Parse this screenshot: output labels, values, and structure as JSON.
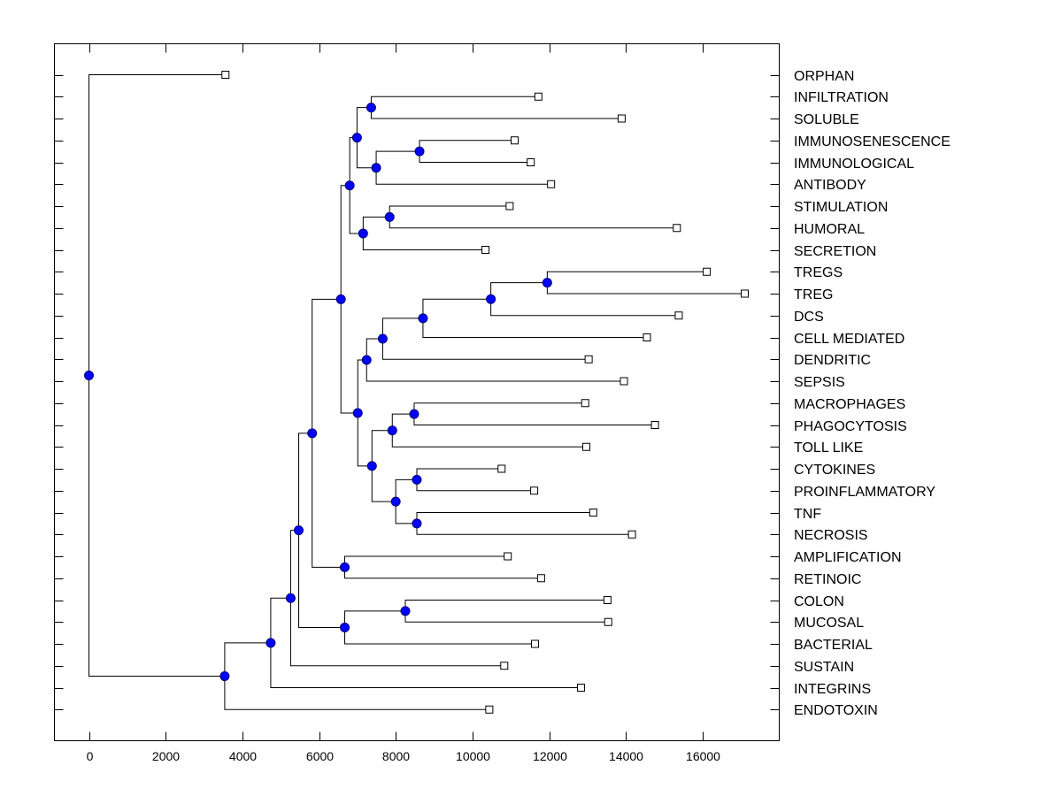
{
  "chart_data": {
    "type": "dendrogram",
    "title": "",
    "xlabel": "",
    "ylabel": "",
    "xlim": [
      -900,
      18000
    ],
    "xticks": [
      0,
      2000,
      4000,
      6000,
      8000,
      10000,
      12000,
      14000,
      16000
    ],
    "xtick_labels": [
      "0",
      "2000",
      "4000",
      "6000",
      "8000",
      "10000",
      "12000",
      "14000",
      "16000"
    ],
    "grid": false,
    "colors": {
      "node_fill": "#0000ff",
      "line": "#000000",
      "leaf_fill": "#ffffff"
    },
    "leaves": [
      {
        "name": "ORPHAN",
        "value": 3560
      },
      {
        "name": "INFILTRATION",
        "value": 11720
      },
      {
        "name": "SOLUBLE",
        "value": 13890
      },
      {
        "name": "IMMUNOSENESCENCE",
        "value": 11100
      },
      {
        "name": "IMMUNOLOGICAL",
        "value": 11520
      },
      {
        "name": "ANTIBODY",
        "value": 12050
      },
      {
        "name": "STIMULATION",
        "value": 10970
      },
      {
        "name": "HUMORAL",
        "value": 15330
      },
      {
        "name": "SECRETION",
        "value": 10340
      },
      {
        "name": "TREGS",
        "value": 16110
      },
      {
        "name": "TREG",
        "value": 17100
      },
      {
        "name": "DCS",
        "value": 15380
      },
      {
        "name": "CELL MEDIATED",
        "value": 14550
      },
      {
        "name": "DENDRITIC",
        "value": 13030
      },
      {
        "name": "SEPSIS",
        "value": 13950
      },
      {
        "name": "MACROPHAGES",
        "value": 12940
      },
      {
        "name": "PHAGOCYTOSIS",
        "value": 14760
      },
      {
        "name": "TOLL LIKE",
        "value": 12970
      },
      {
        "name": "CYTOKINES",
        "value": 10760
      },
      {
        "name": "PROINFLAMMATORY",
        "value": 11610
      },
      {
        "name": "TNF",
        "value": 13150
      },
      {
        "name": "NECROSIS",
        "value": 14160
      },
      {
        "name": "AMPLIFICATION",
        "value": 10920
      },
      {
        "name": "RETINOIC",
        "value": 11790
      },
      {
        "name": "COLON",
        "value": 13520
      },
      {
        "name": "MUCOSAL",
        "value": 13540
      },
      {
        "name": "BACTERIAL",
        "value": 11630
      },
      {
        "name": "SUSTAIN",
        "value": 10830
      },
      {
        "name": "INTEGRINS",
        "value": 12830
      },
      {
        "name": "ENDOTOXIN",
        "value": 10440
      }
    ],
    "tree": {
      "value": 0,
      "children": [
        {
          "leaf": "ORPHAN"
        },
        {
          "value": 3540,
          "children": [
            {
              "value": 4740,
              "children": [
                {
                  "value": 5260,
                  "children": [
                    {
                      "value": 5470,
                      "children": [
                        {
                          "value": 5820,
                          "children": [
                            {
                              "value": 6570,
                              "children": [
                                {
                                  "value": 6800,
                                  "children": [
                                    {
                                      "value": 6990,
                                      "children": [
                                        {
                                          "value": 7360,
                                          "children": [
                                            {
                                              "leaf": "INFILTRATION"
                                            },
                                            {
                                              "leaf": "SOLUBLE"
                                            }
                                          ]
                                        },
                                        {
                                          "value": 7490,
                                          "children": [
                                            {
                                              "value": 8620,
                                              "children": [
                                                {
                                                  "leaf": "IMMUNOSENESCENCE"
                                                },
                                                {
                                                  "leaf": "IMMUNOLOGICAL"
                                                }
                                              ]
                                            },
                                            {
                                              "leaf": "ANTIBODY"
                                            }
                                          ]
                                        }
                                      ]
                                    },
                                    {
                                      "value": 7150,
                                      "children": [
                                        {
                                          "value": 7840,
                                          "children": [
                                            {
                                              "leaf": "STIMULATION"
                                            },
                                            {
                                              "leaf": "HUMORAL"
                                            }
                                          ]
                                        },
                                        {
                                          "leaf": "SECRETION"
                                        }
                                      ]
                                    }
                                  ]
                                },
                                {
                                  "value": 7010,
                                  "children": [
                                    {
                                      "value": 7240,
                                      "children": [
                                        {
                                          "value": 7660,
                                          "children": [
                                            {
                                              "value": 8710,
                                              "children": [
                                                {
                                                  "value": 10480,
                                                  "children": [
                                                    {
                                                      "value": 11950,
                                                      "children": [
                                                        {
                                                          "leaf": "TREGS"
                                                        },
                                                        {
                                                          "leaf": "TREG"
                                                        }
                                                      ]
                                                    },
                                                    {
                                                      "leaf": "DCS"
                                                    }
                                                  ]
                                                },
                                                {
                                                  "leaf": "CELL MEDIATED"
                                                }
                                              ]
                                            },
                                            {
                                              "leaf": "DENDRITIC"
                                            }
                                          ]
                                        },
                                        {
                                          "leaf": "SEPSIS"
                                        }
                                      ]
                                    },
                                    {
                                      "value": 7380,
                                      "children": [
                                        {
                                          "value": 7910,
                                          "children": [
                                            {
                                              "value": 8480,
                                              "children": [
                                                {
                                                  "leaf": "MACROPHAGES"
                                                },
                                                {
                                                  "leaf": "PHAGOCYTOSIS"
                                                }
                                              ]
                                            },
                                            {
                                              "leaf": "TOLL LIKE"
                                            }
                                          ]
                                        },
                                        {
                                          "value": 8000,
                                          "children": [
                                            {
                                              "value": 8550,
                                              "children": [
                                                {
                                                  "leaf": "CYTOKINES"
                                                },
                                                {
                                                  "leaf": "PROINFLAMMATORY"
                                                }
                                              ]
                                            },
                                            {
                                              "value": 8550,
                                              "children": [
                                                {
                                                  "leaf": "TNF"
                                                },
                                                {
                                                  "leaf": "NECROSIS"
                                                }
                                              ]
                                            }
                                          ]
                                        }
                                      ]
                                    }
                                  ]
                                }
                              ]
                            },
                            {
                              "value": 6670,
                              "children": [
                                {
                                  "leaf": "AMPLIFICATION"
                                },
                                {
                                  "leaf": "RETINOIC"
                                }
                              ]
                            }
                          ]
                        },
                        {
                          "value": 6670,
                          "children": [
                            {
                              "value": 8250,
                              "children": [
                                {
                                  "leaf": "COLON"
                                },
                                {
                                  "leaf": "MUCOSAL"
                                }
                              ]
                            },
                            {
                              "leaf": "BACTERIAL"
                            }
                          ]
                        }
                      ]
                    },
                    {
                      "leaf": "SUSTAIN"
                    }
                  ]
                },
                {
                  "leaf": "INTEGRINS"
                }
              ]
            },
            {
              "leaf": "ENDOTOXIN"
            }
          ]
        }
      ]
    }
  }
}
